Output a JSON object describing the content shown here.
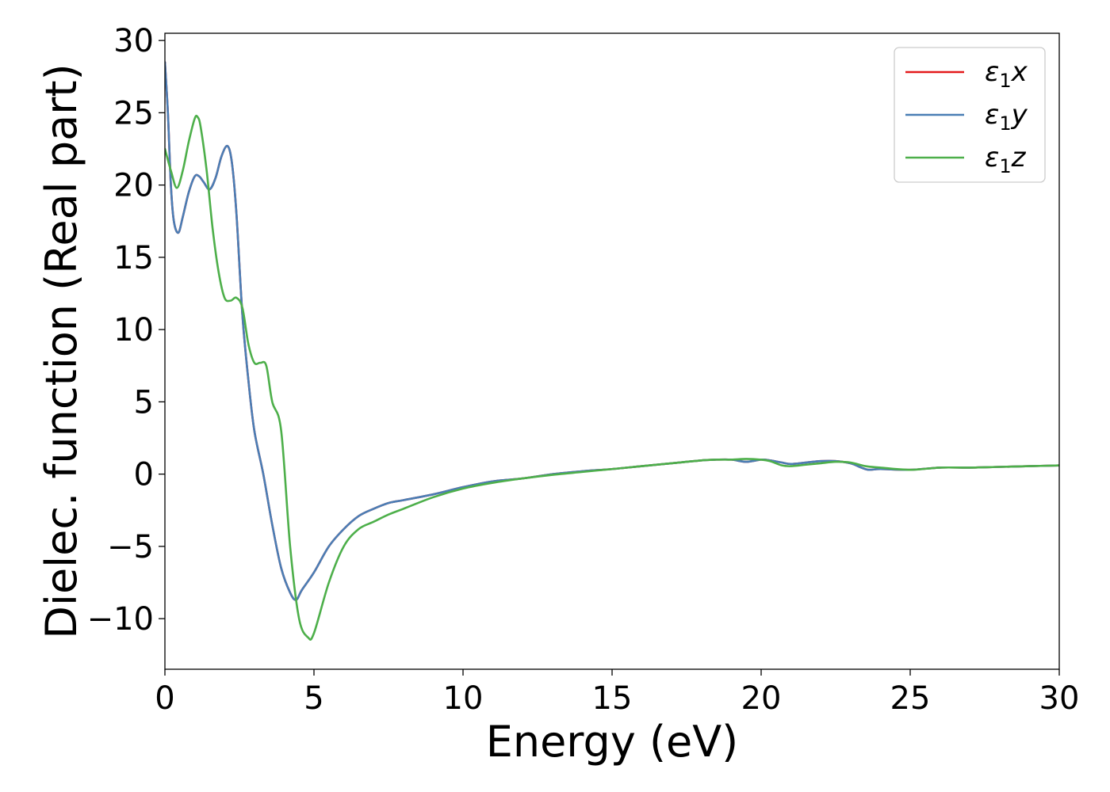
{
  "chart_data": {
    "type": "line",
    "title": "",
    "xlabel": "Energy (eV)",
    "ylabel": "Dielec. function (Real part)",
    "xlim": [
      0,
      30
    ],
    "ylim": [
      -13.5,
      30.5
    ],
    "xticks": [
      0,
      5,
      10,
      15,
      20,
      25,
      30
    ],
    "xtick_labels": [
      "0",
      "5",
      "10",
      "15",
      "20",
      "25",
      "30"
    ],
    "yticks": [
      -10,
      -5,
      0,
      5,
      10,
      15,
      20,
      25,
      30
    ],
    "ytick_labels": [
      "−10",
      "−5",
      "0",
      "5",
      "10",
      "15",
      "20",
      "25",
      "30"
    ],
    "grid": false,
    "legend_position": "top-right",
    "series": [
      {
        "name": "ε₁x",
        "legend_main": "ε",
        "legend_sub": "1",
        "legend_suffix": "x",
        "color": "#e41a1c",
        "x": [
          0,
          0.1,
          0.2,
          0.3,
          0.45,
          0.6,
          0.8,
          1.0,
          1.15,
          1.3,
          1.5,
          1.7,
          1.9,
          2.1,
          2.25,
          2.4,
          2.6,
          2.8,
          3.0,
          3.3,
          3.6,
          3.9,
          4.2,
          4.4,
          4.6,
          5.0,
          5.5,
          6.0,
          6.5,
          7.0,
          7.5,
          8.0,
          9.0,
          10.0,
          11.0,
          12.0,
          13.0,
          14.0,
          15.0,
          16.0,
          17.0,
          18.0,
          18.5,
          19.0,
          19.5,
          20.0,
          20.3,
          20.7,
          21.0,
          21.5,
          22.0,
          22.5,
          23.0,
          23.3,
          23.6,
          24.0,
          25.0,
          26.0,
          27.0,
          28.0,
          29.0,
          30.0
        ],
        "values": [
          28.5,
          25.0,
          20.0,
          17.5,
          16.7,
          17.8,
          19.5,
          20.6,
          20.6,
          20.2,
          19.7,
          20.5,
          22.0,
          22.7,
          21.5,
          18.0,
          11.0,
          6.5,
          3.0,
          0.0,
          -3.5,
          -6.5,
          -8.2,
          -8.7,
          -8.0,
          -6.8,
          -5.0,
          -3.8,
          -2.9,
          -2.4,
          -2.0,
          -1.8,
          -1.4,
          -0.9,
          -0.5,
          -0.3,
          0.0,
          0.2,
          0.35,
          0.55,
          0.75,
          0.95,
          1.0,
          1.0,
          0.85,
          1.0,
          0.95,
          0.8,
          0.7,
          0.8,
          0.9,
          0.9,
          0.75,
          0.5,
          0.3,
          0.35,
          0.3,
          0.45,
          0.45,
          0.5,
          0.55,
          0.6
        ]
      },
      {
        "name": "ε₁y",
        "legend_main": "ε",
        "legend_sub": "1",
        "legend_suffix": "y",
        "color": "#4a7eb5",
        "x": [
          0,
          0.1,
          0.2,
          0.3,
          0.45,
          0.6,
          0.8,
          1.0,
          1.15,
          1.3,
          1.5,
          1.7,
          1.9,
          2.1,
          2.25,
          2.4,
          2.6,
          2.8,
          3.0,
          3.3,
          3.6,
          3.9,
          4.2,
          4.4,
          4.6,
          5.0,
          5.5,
          6.0,
          6.5,
          7.0,
          7.5,
          8.0,
          9.0,
          10.0,
          11.0,
          12.0,
          13.0,
          14.0,
          15.0,
          16.0,
          17.0,
          18.0,
          18.5,
          19.0,
          19.5,
          20.0,
          20.3,
          20.7,
          21.0,
          21.5,
          22.0,
          22.5,
          23.0,
          23.3,
          23.6,
          24.0,
          25.0,
          26.0,
          27.0,
          28.0,
          29.0,
          30.0
        ],
        "values": [
          28.5,
          25.0,
          20.0,
          17.5,
          16.7,
          17.8,
          19.5,
          20.6,
          20.6,
          20.2,
          19.7,
          20.5,
          22.0,
          22.7,
          21.5,
          18.0,
          11.0,
          6.5,
          3.0,
          0.0,
          -3.5,
          -6.5,
          -8.2,
          -8.7,
          -8.0,
          -6.8,
          -5.0,
          -3.8,
          -2.9,
          -2.4,
          -2.0,
          -1.8,
          -1.4,
          -0.9,
          -0.5,
          -0.3,
          0.0,
          0.2,
          0.35,
          0.55,
          0.75,
          0.95,
          1.0,
          1.0,
          0.85,
          1.0,
          0.95,
          0.8,
          0.7,
          0.8,
          0.9,
          0.9,
          0.75,
          0.5,
          0.3,
          0.35,
          0.3,
          0.45,
          0.45,
          0.5,
          0.55,
          0.6
        ]
      },
      {
        "name": "ε₁z",
        "legend_main": "ε",
        "legend_sub": "1",
        "legend_suffix": "z",
        "color": "#4daf4a",
        "x": [
          0,
          0.2,
          0.4,
          0.6,
          0.8,
          1.0,
          1.1,
          1.2,
          1.4,
          1.6,
          1.8,
          2.0,
          2.2,
          2.4,
          2.6,
          2.8,
          3.0,
          3.2,
          3.4,
          3.6,
          3.9,
          4.2,
          4.5,
          4.8,
          5.0,
          5.5,
          6.0,
          6.5,
          7.0,
          7.5,
          8.0,
          9.0,
          10.0,
          11.0,
          12.0,
          13.0,
          14.0,
          15.0,
          16.0,
          17.0,
          18.0,
          18.5,
          19.0,
          19.5,
          20.0,
          20.3,
          20.7,
          21.0,
          21.5,
          22.0,
          22.5,
          23.0,
          23.5,
          24.0,
          25.0,
          26.0,
          27.0,
          28.0,
          29.0,
          30.0
        ],
        "values": [
          22.5,
          21.0,
          19.8,
          21.0,
          23.0,
          24.6,
          24.7,
          24.0,
          21.0,
          17.0,
          14.0,
          12.2,
          12.0,
          12.2,
          11.5,
          9.0,
          7.7,
          7.7,
          7.5,
          5.0,
          3.0,
          -5.0,
          -10.0,
          -11.3,
          -11.0,
          -7.5,
          -5.0,
          -3.8,
          -3.3,
          -2.8,
          -2.4,
          -1.6,
          -1.0,
          -0.6,
          -0.3,
          -0.05,
          0.15,
          0.35,
          0.55,
          0.75,
          0.95,
          1.0,
          1.0,
          1.05,
          1.0,
          0.9,
          0.6,
          0.55,
          0.65,
          0.75,
          0.85,
          0.8,
          0.55,
          0.45,
          0.3,
          0.45,
          0.45,
          0.5,
          0.55,
          0.6
        ]
      }
    ]
  }
}
